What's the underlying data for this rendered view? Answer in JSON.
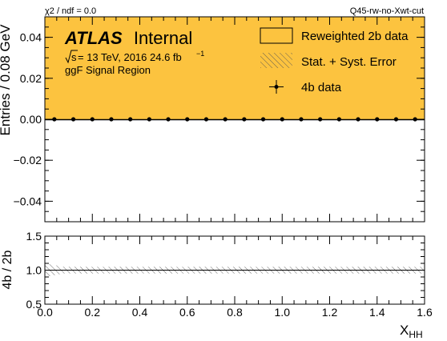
{
  "header": {
    "chi2_text": "χ2 / ndf = 0.0",
    "plot_tag": "Q45-rw-no-Xwt-cut"
  },
  "labels": {
    "atlas": "ATLAS",
    "status": "Internal",
    "sqrt_s": "s",
    "energy_lumi": "= 13 TeV, 2016 24.6 fb",
    "lumi_exp": "−1",
    "region": "ggF Signal Region"
  },
  "legend": {
    "placement": "top-right",
    "items": [
      "Reweighted 2b data",
      "Stat. + Syst. Error",
      "4b data"
    ]
  },
  "colors": {
    "fill": "#fcc33f",
    "marker": "#000000",
    "band_hatch": "#555555"
  },
  "chart_data": [
    {
      "type": "area",
      "panel": "main",
      "xlabel": "",
      "ylabel": "Entries / 0.08 GeV",
      "xlim": [
        0,
        1.6
      ],
      "ylim": [
        -0.05,
        0.05
      ],
      "y_ticks": [
        "0.04",
        "0.02",
        "0.00",
        "−0.02",
        "−0.04"
      ],
      "y_tick_values": [
        0.04,
        0.02,
        0.0,
        -0.02,
        -0.04
      ],
      "background_fill": "reweighted-2b",
      "series": [
        {
          "name": "4b data",
          "x": [
            0.04,
            0.12,
            0.2,
            0.28,
            0.36,
            0.44,
            0.52,
            0.6,
            0.68,
            0.76,
            0.84,
            0.92,
            1.0,
            1.08,
            1.16,
            1.24,
            1.32,
            1.4,
            1.48,
            1.56
          ],
          "y": [
            0,
            0,
            0,
            0,
            0,
            0,
            0,
            0,
            0,
            0,
            0,
            0,
            0,
            0,
            0,
            0,
            0,
            0,
            0,
            0
          ]
        }
      ]
    },
    {
      "type": "line",
      "panel": "ratio",
      "xlabel": "X",
      "xlabel_sub": "HH",
      "ylabel": "4b / 2b",
      "xlim": [
        0,
        1.6
      ],
      "ylim": [
        0.5,
        1.5
      ],
      "x_ticks": [
        "0.0",
        "0.2",
        "0.4",
        "0.6",
        "0.8",
        "1.0",
        "1.2",
        "1.4",
        "1.6"
      ],
      "x_tick_values": [
        0,
        0.2,
        0.4,
        0.6,
        0.8,
        1.0,
        1.2,
        1.4,
        1.6
      ],
      "y_ticks": [
        "1.5",
        "1.0",
        "0.5"
      ],
      "y_tick_values": [
        1.5,
        1.0,
        0.5
      ],
      "ratio_line": 1.0,
      "error_band": {
        "x": [
          0,
          0.08,
          1.6
        ],
        "upper": [
          1.1,
          1.05,
          1.05
        ],
        "lower": [
          0.9,
          0.95,
          0.95
        ]
      }
    }
  ]
}
